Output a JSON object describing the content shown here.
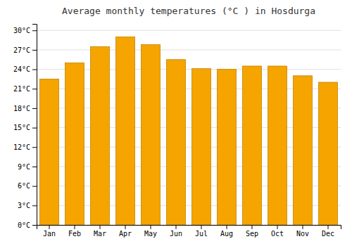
{
  "chart_data": {
    "type": "bar",
    "title": "Average monthly temperatures (°C ) in Hosdurga",
    "categories": [
      "Jan",
      "Feb",
      "Mar",
      "Apr",
      "May",
      "Jun",
      "Jul",
      "Aug",
      "Sep",
      "Oct",
      "Nov",
      "Dec"
    ],
    "values": [
      22.5,
      25.0,
      27.5,
      29.0,
      27.8,
      25.5,
      24.1,
      24.0,
      24.5,
      24.5,
      23.0,
      22.0
    ],
    "color": "#F5A400",
    "ylim": [
      0,
      31
    ],
    "yticks": [
      {
        "value": 0,
        "label": "0°C"
      },
      {
        "value": 3,
        "label": "3°C"
      },
      {
        "value": 6,
        "label": "6°C"
      },
      {
        "value": 9,
        "label": "9°C"
      },
      {
        "value": 12,
        "label": "12°C"
      },
      {
        "value": 15,
        "label": "15°C"
      },
      {
        "value": 18,
        "label": "18°C"
      },
      {
        "value": 21,
        "label": "21°C"
      },
      {
        "value": 24,
        "label": "24°C"
      },
      {
        "value": 27,
        "label": "27°C"
      },
      {
        "value": 30,
        "label": "30°C"
      }
    ],
    "grid": true
  }
}
